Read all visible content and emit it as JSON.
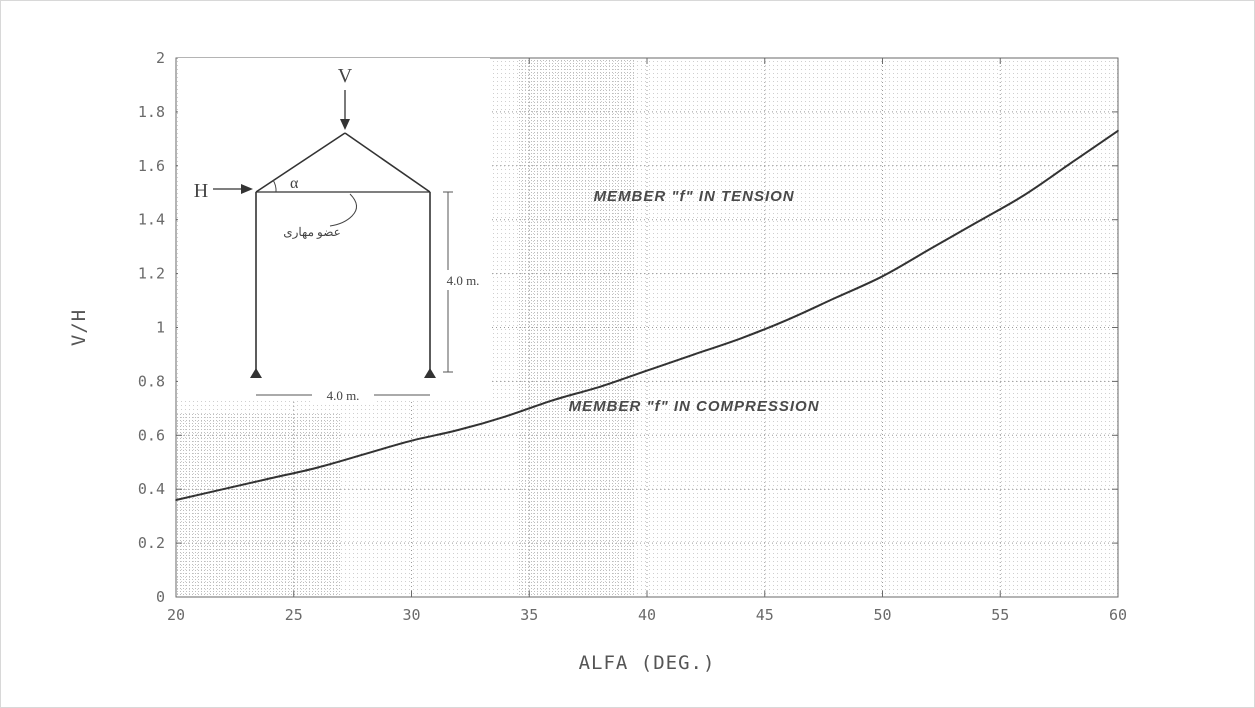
{
  "chart_data": {
    "type": "line",
    "xlabel": "ALFA  (DEG.)",
    "ylabel": "V/H",
    "xlim": [
      20,
      60
    ],
    "ylim": [
      0,
      2
    ],
    "xticks": [
      "20",
      "25",
      "30",
      "35",
      "40",
      "45",
      "50",
      "55",
      "60"
    ],
    "yticks": [
      "0",
      "0.2",
      "0.4",
      "0.6",
      "0.8",
      "1",
      "1.2",
      "1.4",
      "1.6",
      "1.8",
      "2"
    ],
    "grid": true,
    "series": [
      {
        "x": [
          20,
          22,
          24,
          26,
          28,
          30,
          32,
          34,
          36,
          38,
          40,
          42,
          44,
          46,
          48,
          50,
          52,
          54,
          56,
          58,
          60
        ],
        "values": [
          0.36,
          0.4,
          0.44,
          0.48,
          0.53,
          0.58,
          0.62,
          0.67,
          0.73,
          0.78,
          0.84,
          0.9,
          0.96,
          1.03,
          1.11,
          1.19,
          1.29,
          1.39,
          1.49,
          1.61,
          1.73
        ]
      }
    ],
    "annotations": [
      {
        "text": "MEMBER  \"f\"  IN TENSION",
        "x": 42,
        "y": 1.47
      },
      {
        "text": "MEMBER  \"f\"  IN COMPRESSION",
        "x": 42,
        "y": 0.69
      }
    ],
    "inset": {
      "v_label": "V",
      "h_label": "H",
      "angle_label": "α",
      "member_label": "عضو مهاری",
      "height_label": "4.0 m.",
      "span_label": "4.0 m."
    }
  },
  "colors": {
    "curve": "#333333",
    "grid": "#9a9a9a",
    "shade": "#d9d9d9",
    "text": "#555555"
  }
}
